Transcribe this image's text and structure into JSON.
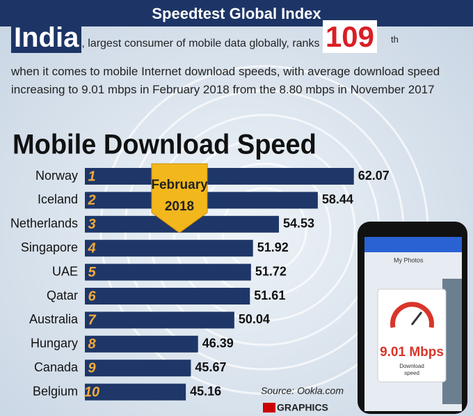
{
  "header": {
    "title": "Speedtest Global Index",
    "country": "India",
    "intro": ", largest consumer of mobile data globally, ranks",
    "rank": "109",
    "rank_suffix": "th",
    "text": "when it comes to mobile Internet download speeds, with average download speed increasing to 9.01 mbps in February 2018 from the 8.80 mbps in November 2017"
  },
  "chart_data": {
    "type": "bar",
    "orientation": "horizontal",
    "title": "Mobile Download Speed",
    "categories": [
      "Norway",
      "Iceland",
      "Netherlands",
      "Singapore",
      "UAE",
      "Qatar",
      "Australia",
      "Hungary",
      "Canada",
      "Belgium"
    ],
    "ranks": [
      1,
      2,
      3,
      4,
      5,
      6,
      7,
      8,
      9,
      10
    ],
    "values": [
      62.07,
      58.44,
      54.53,
      51.92,
      51.72,
      51.61,
      50.04,
      46.39,
      45.67,
      45.16
    ],
    "color": "#1e3768",
    "xlim": [
      35,
      63
    ],
    "badge": [
      "February",
      "2018"
    ]
  },
  "phone": {
    "screen_title": "My Photos",
    "speed": "9.01 Mbps",
    "caption": [
      "Download",
      "speed"
    ]
  },
  "footer": {
    "source": "Source: Ookla.com",
    "brand": "GRAPHICS"
  }
}
